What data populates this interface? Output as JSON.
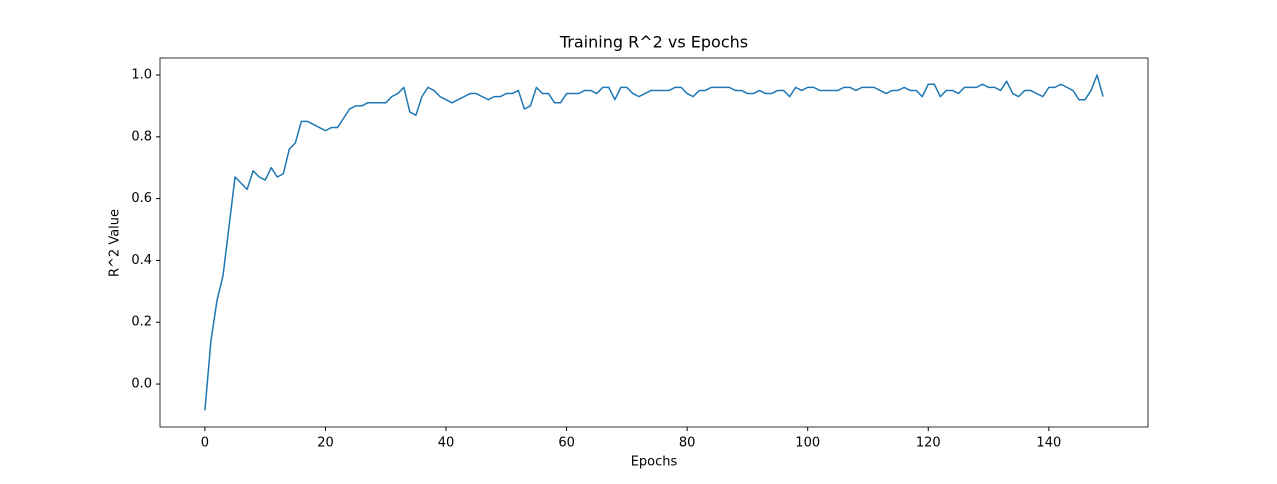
{
  "chart_data": {
    "type": "line",
    "title": "Training R^2 vs Epochs",
    "x_label": "Epochs",
    "y_label": "R^2 Value",
    "x": [
      0,
      1,
      2,
      3,
      4,
      5,
      6,
      7,
      8,
      9,
      10,
      11,
      12,
      13,
      14,
      15,
      16,
      17,
      18,
      19,
      20,
      21,
      22,
      23,
      24,
      25,
      26,
      27,
      28,
      29,
      30,
      31,
      32,
      33,
      34,
      35,
      36,
      37,
      38,
      39,
      40,
      41,
      42,
      43,
      44,
      45,
      46,
      47,
      48,
      49,
      50,
      51,
      52,
      53,
      54,
      55,
      56,
      57,
      58,
      59,
      60,
      61,
      62,
      63,
      64,
      65,
      66,
      67,
      68,
      69,
      70,
      71,
      72,
      73,
      74,
      75,
      76,
      77,
      78,
      79,
      80,
      81,
      82,
      83,
      84,
      85,
      86,
      87,
      88,
      89,
      90,
      91,
      92,
      93,
      94,
      95,
      96,
      97,
      98,
      99,
      100,
      101,
      102,
      103,
      104,
      105,
      106,
      107,
      108,
      109,
      110,
      111,
      112,
      113,
      114,
      115,
      116,
      117,
      118,
      119,
      120,
      121,
      122,
      123,
      124,
      125,
      126,
      127,
      128,
      129,
      130,
      131,
      132,
      133,
      134,
      135,
      136,
      137,
      138,
      139,
      140,
      141,
      142,
      143,
      144,
      145,
      146,
      147,
      148,
      149
    ],
    "series": [
      {
        "name": "Training R^2",
        "color": "#1f77b4",
        "values": [
          -0.085,
          0.14,
          0.27,
          0.35,
          0.51,
          0.67,
          0.65,
          0.63,
          0.69,
          0.67,
          0.66,
          0.7,
          0.67,
          0.68,
          0.76,
          0.78,
          0.85,
          0.85,
          0.84,
          0.83,
          0.82,
          0.83,
          0.83,
          0.86,
          0.89,
          0.9,
          0.9,
          0.91,
          0.91,
          0.91,
          0.91,
          0.93,
          0.94,
          0.96,
          0.88,
          0.87,
          0.93,
          0.96,
          0.95,
          0.93,
          0.92,
          0.91,
          0.92,
          0.93,
          0.94,
          0.94,
          0.93,
          0.92,
          0.93,
          0.93,
          0.94,
          0.94,
          0.95,
          0.89,
          0.9,
          0.96,
          0.94,
          0.94,
          0.91,
          0.91,
          0.94,
          0.94,
          0.94,
          0.95,
          0.95,
          0.94,
          0.96,
          0.96,
          0.92,
          0.96,
          0.96,
          0.94,
          0.93,
          0.94,
          0.95,
          0.95,
          0.95,
          0.95,
          0.96,
          0.96,
          0.94,
          0.93,
          0.95,
          0.95,
          0.96,
          0.96,
          0.96,
          0.96,
          0.95,
          0.95,
          0.94,
          0.94,
          0.95,
          0.94,
          0.94,
          0.95,
          0.95,
          0.93,
          0.96,
          0.95,
          0.96,
          0.96,
          0.95,
          0.95,
          0.95,
          0.95,
          0.96,
          0.96,
          0.95,
          0.96,
          0.96,
          0.96,
          0.95,
          0.94,
          0.95,
          0.95,
          0.96,
          0.95,
          0.95,
          0.93,
          0.97,
          0.97,
          0.93,
          0.95,
          0.95,
          0.94,
          0.96,
          0.96,
          0.96,
          0.97,
          0.96,
          0.96,
          0.95,
          0.98,
          0.94,
          0.93,
          0.95,
          0.95,
          0.94,
          0.93,
          0.96,
          0.96,
          0.97,
          0.96,
          0.95,
          0.92,
          0.92,
          0.95,
          1.0,
          0.93
        ]
      }
    ],
    "xlim": [
      -7.45,
      156.45
    ],
    "ylim": [
      -0.139,
      1.055
    ],
    "xticks": [
      0,
      20,
      40,
      60,
      80,
      100,
      120,
      140
    ],
    "yticks": [
      {
        "value": 0,
        "label": "0.0"
      },
      {
        "value": 0.2,
        "label": "0.2"
      },
      {
        "value": 0.4,
        "label": "0.4"
      },
      {
        "value": 0.6,
        "label": "0.6"
      },
      {
        "value": 0.8,
        "label": "0.8"
      },
      {
        "value": 1,
        "label": "1.0"
      }
    ],
    "grid": false
  }
}
